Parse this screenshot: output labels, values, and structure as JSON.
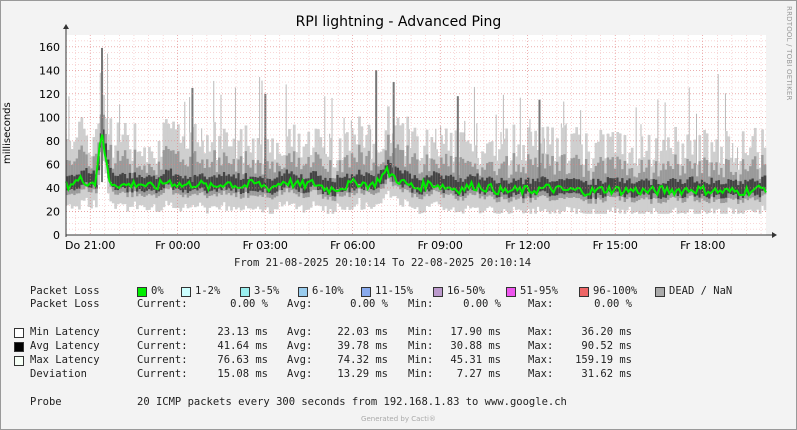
{
  "title": "RPI lightning - Advanced Ping",
  "side_label": "RRDTOOL / TOBI OETIKER",
  "ylabel": "milliseconds",
  "time_range": "From 21-08-2025 20:10:14 To 22-08-2025 20:10:14",
  "chart_data": {
    "type": "line",
    "title": "RPI lightning - Advanced Ping",
    "ylabel": "milliseconds",
    "xlabel": "",
    "ylim": [
      0,
      170
    ],
    "yticks": [
      0,
      20,
      40,
      60,
      80,
      100,
      120,
      140,
      160
    ],
    "xticks": [
      "Do 21:00",
      "Fr 00:00",
      "Fr 03:00",
      "Fr 06:00",
      "Fr 09:00",
      "Fr 12:00",
      "Fr 15:00",
      "Fr 18:00"
    ],
    "grid": true,
    "series": [
      {
        "name": "Avg Latency",
        "color": "#00ee00",
        "x_hours_from_start": [
          0,
          0.5,
          1,
          1.2,
          1.5,
          2,
          2.5,
          3,
          3.5,
          4,
          4.5,
          5,
          5.5,
          6,
          6.5,
          7,
          7.5,
          8,
          8.5,
          9,
          9.5,
          10,
          10.5,
          11,
          11.5,
          12,
          12.5,
          13,
          13.5,
          14,
          14.5,
          15,
          15.5,
          16,
          16.5,
          17,
          17.5,
          18,
          18.5,
          19,
          19.5,
          20,
          20.5,
          21,
          21.5,
          22,
          22.5,
          23,
          23.5,
          24
        ],
        "values": [
          42,
          47,
          44,
          88,
          45,
          42,
          44,
          40,
          46,
          42,
          44,
          40,
          45,
          41,
          44,
          40,
          46,
          42,
          44,
          39,
          41,
          45,
          42,
          54,
          45,
          40,
          44,
          41,
          39,
          42,
          40,
          37,
          38,
          38,
          40,
          38,
          38,
          37,
          39,
          38,
          38,
          37,
          38,
          38,
          39,
          38,
          37,
          37,
          38,
          40
        ]
      },
      {
        "name": "Max Latency",
        "color": "#888888",
        "peaks": [
          159,
          140,
          130,
          125,
          120,
          118,
          115
        ]
      }
    ]
  },
  "legend": {
    "loss_label": "Packet Loss",
    "loss_items": [
      {
        "label": "0%",
        "color": "#00ee00"
      },
      {
        "label": "1-2%",
        "color": "#ccffff"
      },
      {
        "label": "3-5%",
        "color": "#99eeee"
      },
      {
        "label": "6-10%",
        "color": "#99ccee"
      },
      {
        "label": "11-15%",
        "color": "#88aaee"
      },
      {
        "label": "16-50%",
        "color": "#bb99cc"
      },
      {
        "label": "51-95%",
        "color": "#ee55ee"
      },
      {
        "label": "96-100%",
        "color": "#ee6666"
      },
      {
        "label": "DEAD / NaN",
        "color": "#aaaaaa"
      }
    ],
    "loss_stats": {
      "label": "Packet Loss",
      "current": "0.00 %",
      "avg": "0.00 %",
      "min": "0.00 %",
      "max": "0.00 %"
    },
    "stat_rows": [
      {
        "label": "Min Latency",
        "swatch": "#ffffff",
        "current": "23.13 ms",
        "avg": "22.03 ms",
        "min": "17.90 ms",
        "max": "36.20 ms"
      },
      {
        "label": "Avg Latency",
        "swatch": "#000000",
        "current": "41.64 ms",
        "avg": "39.78 ms",
        "min": "30.88 ms",
        "max": "90.52 ms"
      },
      {
        "label": "Max Latency",
        "swatch": "#f6fff6",
        "current": "76.63 ms",
        "avg": "74.32 ms",
        "min": "45.31 ms",
        "max": "159.19 ms"
      },
      {
        "label": "Deviation",
        "swatch": null,
        "current": "15.08 ms",
        "avg": "13.29 ms",
        "min": "7.27 ms",
        "max": "31.62 ms"
      }
    ],
    "headers": {
      "current": "Current:",
      "avg": "Avg:",
      "min": "Min:",
      "max": "Max:"
    },
    "probe_label": "Probe",
    "probe_text": "20 ICMP packets every 300 seconds from 192.168.1.83 to www.google.ch"
  },
  "footer": "Generated by Cacti®"
}
